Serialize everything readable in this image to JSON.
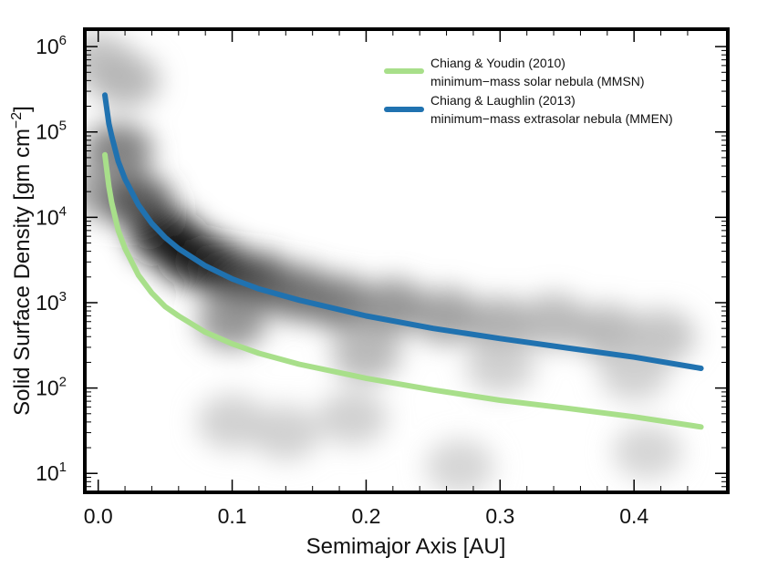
{
  "chart_data": {
    "type": "line",
    "xlabel": "Semimajor Axis  [AU]",
    "ylabel_main": "Solid Surface Density  [gm cm",
    "ylabel_exp": "−2",
    "ylabel_close": "]",
    "xlim": [
      -0.01,
      0.47
    ],
    "ylim": [
      6,
      1600000
    ],
    "yscale": "log",
    "x_ticks": [
      {
        "value": 0.0,
        "label": "0.0"
      },
      {
        "value": 0.1,
        "label": "0.1"
      },
      {
        "value": 0.2,
        "label": "0.2"
      },
      {
        "value": 0.3,
        "label": "0.3"
      },
      {
        "value": 0.4,
        "label": "0.4"
      }
    ],
    "y_ticks": [
      {
        "value": 10,
        "base": "10",
        "exp": "1"
      },
      {
        "value": 100,
        "base": "10",
        "exp": "2"
      },
      {
        "value": 1000,
        "base": "10",
        "exp": "3"
      },
      {
        "value": 10000,
        "base": "10",
        "exp": "4"
      },
      {
        "value": 100000,
        "base": "10",
        "exp": "5"
      },
      {
        "value": 1000000,
        "base": "10",
        "exp": "6"
      }
    ],
    "grid": false,
    "legend_position": "top-right",
    "series": [
      {
        "name": "Chiang & Youdin (2010)",
        "name_line2": "minimum−mass solar nebula (MMSN)",
        "color": "#a8df8a",
        "x": [
          0.005,
          0.008,
          0.01,
          0.015,
          0.02,
          0.03,
          0.04,
          0.05,
          0.06,
          0.08,
          0.1,
          0.12,
          0.15,
          0.2,
          0.25,
          0.3,
          0.35,
          0.4,
          0.45
        ],
        "values": [
          54000,
          23000,
          15000,
          7000,
          4300,
          2100,
          1300,
          900,
          700,
          450,
          330,
          255,
          190,
          130,
          95,
          72,
          58,
          46,
          35
        ]
      },
      {
        "name": "Chiang & Laughlin (2013)",
        "name_line2": "minimum−mass extrasolar nebula (MMEN)",
        "color": "#2072b0",
        "x": [
          0.005,
          0.008,
          0.01,
          0.015,
          0.02,
          0.03,
          0.04,
          0.05,
          0.06,
          0.08,
          0.1,
          0.12,
          0.15,
          0.2,
          0.25,
          0.3,
          0.35,
          0.4,
          0.45
        ],
        "values": [
          270000,
          125000,
          90000,
          45000,
          28000,
          14000,
          8500,
          5800,
          4300,
          2700,
          1900,
          1450,
          1070,
          700,
          500,
          380,
          295,
          230,
          170
        ]
      }
    ],
    "density_background": [
      {
        "x": 0.0,
        "y": 700000,
        "intensity": 0.25
      },
      {
        "x": 0.02,
        "y": 400000,
        "intensity": 0.3
      },
      {
        "x": 0.015,
        "y": 60000,
        "intensity": 0.55
      },
      {
        "x": 0.005,
        "y": 20000,
        "intensity": 0.4
      },
      {
        "x": 0.03,
        "y": 15000,
        "intensity": 0.7
      },
      {
        "x": 0.05,
        "y": 6000,
        "intensity": 0.9
      },
      {
        "x": 0.07,
        "y": 3500,
        "intensity": 0.95
      },
      {
        "x": 0.09,
        "y": 2500,
        "intensity": 0.85
      },
      {
        "x": 0.12,
        "y": 1800,
        "intensity": 0.75
      },
      {
        "x": 0.15,
        "y": 1300,
        "intensity": 0.6
      },
      {
        "x": 0.18,
        "y": 1000,
        "intensity": 0.55
      },
      {
        "x": 0.22,
        "y": 900,
        "intensity": 0.45
      },
      {
        "x": 0.26,
        "y": 700,
        "intensity": 0.4
      },
      {
        "x": 0.3,
        "y": 550,
        "intensity": 0.35
      },
      {
        "x": 0.34,
        "y": 600,
        "intensity": 0.3
      },
      {
        "x": 0.38,
        "y": 450,
        "intensity": 0.3
      },
      {
        "x": 0.42,
        "y": 400,
        "intensity": 0.25
      },
      {
        "x": 0.1,
        "y": 600,
        "intensity": 0.45
      },
      {
        "x": 0.2,
        "y": 250,
        "intensity": 0.3
      },
      {
        "x": 0.3,
        "y": 180,
        "intensity": 0.2
      },
      {
        "x": 0.1,
        "y": 40,
        "intensity": 0.2
      },
      {
        "x": 0.14,
        "y": 30,
        "intensity": 0.2
      },
      {
        "x": 0.19,
        "y": 45,
        "intensity": 0.2
      },
      {
        "x": 0.27,
        "y": 12,
        "intensity": 0.18
      },
      {
        "x": 0.41,
        "y": 18,
        "intensity": 0.18
      },
      {
        "x": 0.4,
        "y": 150,
        "intensity": 0.2
      }
    ]
  }
}
